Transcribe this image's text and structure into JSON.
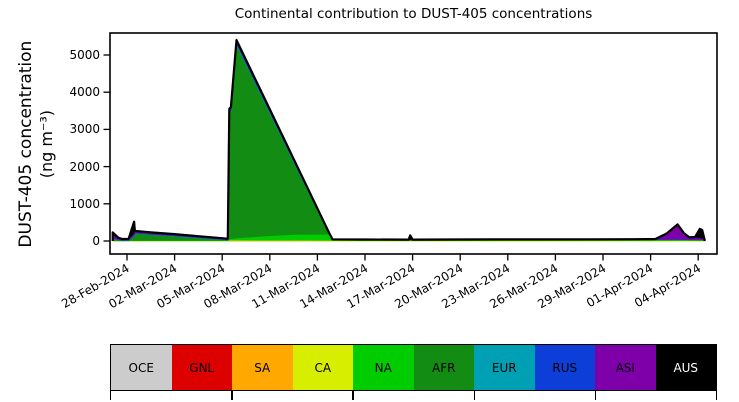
{
  "title": "Continental contribution to DUST-405 concentrations",
  "y_axis": {
    "label_line1": "DUST-405 concentration",
    "label_line2": "(ng m⁻³)",
    "ticks": [
      "0",
      "1000",
      "2000",
      "3000",
      "4000",
      "5000"
    ]
  },
  "x_axis": {
    "ticks": [
      "28-Feb-2024",
      "02-Mar-2024",
      "05-Mar-2024",
      "08-Mar-2024",
      "11-Mar-2024",
      "14-Mar-2024",
      "17-Mar-2024",
      "20-Mar-2024",
      "23-Mar-2024",
      "26-Mar-2024",
      "29-Mar-2024",
      "01-Apr-2024",
      "04-Apr-2024"
    ]
  },
  "legend": {
    "items": [
      {
        "label": "OCE",
        "color": "#cccccc",
        "text_color": "#000000"
      },
      {
        "label": "GNL",
        "color": "#dd0000",
        "text_color": "#000000"
      },
      {
        "label": "SA",
        "color": "#ffa800",
        "text_color": "#000000"
      },
      {
        "label": "CA",
        "color": "#d8ee00",
        "text_color": "#000000"
      },
      {
        "label": "NA",
        "color": "#00cc00",
        "text_color": "#000000"
      },
      {
        "label": "AFR",
        "color": "#128c12",
        "text_color": "#000000"
      },
      {
        "label": "EUR",
        "color": "#00a0b4",
        "text_color": "#000000"
      },
      {
        "label": "RUS",
        "color": "#0d3ed8",
        "text_color": "#000000"
      },
      {
        "label": "ASI",
        "color": "#7d00a8",
        "text_color": "#000000"
      },
      {
        "label": "AUS",
        "color": "#000000",
        "text_color": "#ffffff"
      }
    ]
  },
  "chart_data": {
    "type": "area",
    "stacked": true,
    "title": "Continental contribution to DUST-405 concentrations",
    "ylabel": "DUST-405 concentration (ng m-3)",
    "xlabel": "",
    "x_unit": "days since 28-Feb-2024",
    "xtick_labels": [
      "28-Feb-2024",
      "02-Mar-2024",
      "05-Mar-2024",
      "08-Mar-2024",
      "11-Mar-2024",
      "14-Mar-2024",
      "17-Mar-2024",
      "20-Mar-2024",
      "23-Mar-2024",
      "26-Mar-2024",
      "29-Mar-2024",
      "01-Apr-2024",
      "04-Apr-2024"
    ],
    "xtick_days": [
      0,
      3,
      6,
      9,
      12,
      15,
      18,
      21,
      24,
      27,
      30,
      33,
      36
    ],
    "ylim": [
      -350,
      5600
    ],
    "peak_total": 5400,
    "x": [
      -0.9,
      -0.55,
      -0.3,
      0.1,
      0.45,
      0.5,
      0.62,
      1.5,
      3,
      4.5,
      6.35,
      6.45,
      6.55,
      6.9,
      8.5,
      10.5,
      12.75,
      12.95,
      15,
      17.75,
      17.85,
      18,
      20,
      23,
      26,
      29,
      32,
      33.3,
      34,
      34.7,
      35.1,
      35.45,
      35.8,
      36.1,
      36.25,
      36.4
    ],
    "series": [
      {
        "name": "OCE",
        "color": "#cccccc",
        "values": [
          0,
          0,
          0,
          0,
          0,
          0,
          0,
          0,
          0,
          0,
          0,
          0,
          0,
          0,
          0,
          0,
          0,
          0,
          0,
          0,
          0,
          0,
          0,
          0,
          0,
          0,
          0,
          0,
          0,
          0,
          0,
          0,
          0,
          0,
          0,
          0
        ]
      },
      {
        "name": "GNL",
        "color": "#dd0000",
        "values": [
          0,
          0,
          0,
          0,
          0,
          0,
          0,
          0,
          0,
          0,
          0,
          0,
          0,
          0,
          0,
          0,
          0,
          0,
          0,
          0,
          0,
          0,
          0,
          0,
          0,
          0,
          0,
          0,
          0,
          0,
          0,
          0,
          0,
          0,
          0,
          0
        ]
      },
      {
        "name": "SA",
        "color": "#ffa800",
        "values": [
          0,
          0,
          0,
          0,
          0,
          0,
          0,
          0,
          0,
          0,
          0,
          0,
          0,
          0,
          0,
          0,
          0,
          0,
          0,
          0,
          0,
          0,
          0,
          0,
          0,
          0,
          0,
          0,
          0,
          0,
          0,
          0,
          0,
          0,
          0,
          0
        ]
      },
      {
        "name": "CA",
        "color": "#d8ee00",
        "values": [
          2,
          2,
          2,
          2,
          2,
          2,
          2,
          2,
          2,
          2,
          2,
          12,
          14,
          14,
          12,
          10,
          6,
          4,
          4,
          4,
          4,
          4,
          4,
          4,
          4,
          4,
          4,
          4,
          4,
          4,
          4,
          4,
          4,
          4,
          4,
          3
        ]
      },
      {
        "name": "NA",
        "color": "#00cc00",
        "values": [
          8,
          6,
          6,
          8,
          8,
          9,
          10,
          10,
          10,
          8,
          8,
          30,
          40,
          60,
          110,
          160,
          170,
          22,
          18,
          16,
          16,
          16,
          18,
          18,
          19,
          20,
          20,
          20,
          20,
          20,
          20,
          20,
          20,
          20,
          20,
          12
        ]
      },
      {
        "name": "AFR",
        "color": "#128c12",
        "values": [
          46,
          19,
          5,
          2,
          122,
          191,
          187,
          159,
          118,
          72,
          11,
          3390,
          3431,
          5201,
          3760,
          1952,
          18,
          4,
          3,
          3,
          3,
          3,
          3,
          4,
          5,
          6,
          7,
          8,
          8,
          8,
          7,
          7,
          7,
          5,
          5,
          3
        ]
      },
      {
        "name": "EUR",
        "color": "#00a0b4",
        "values": [
          6,
          5,
          4,
          4,
          5,
          5,
          5,
          5,
          5,
          5,
          5,
          8,
          8,
          10,
          8,
          8,
          3,
          3,
          3,
          3,
          3,
          3,
          3,
          4,
          4,
          4,
          5,
          5,
          5,
          6,
          5,
          4,
          4,
          4,
          4,
          3
        ]
      },
      {
        "name": "RUS",
        "color": "#0d3ed8",
        "values": [
          8,
          6,
          5,
          5,
          8,
          8,
          8,
          8,
          8,
          7,
          6,
          20,
          22,
          30,
          25,
          22,
          2,
          2,
          2,
          2,
          2,
          2,
          2,
          2,
          2,
          2,
          2,
          2,
          3,
          5,
          4,
          3,
          3,
          3,
          3,
          2
        ]
      },
      {
        "name": "ASI",
        "color": "#7d00a8",
        "values": [
          90,
          40,
          25,
          30,
          45,
          40,
          38,
          34,
          30,
          26,
          20,
          50,
          55,
          60,
          45,
          40,
          3,
          2,
          2,
          2,
          2,
          2,
          2,
          2,
          2,
          2,
          2,
          8,
          150,
          390,
          160,
          50,
          60,
          40,
          30,
          5
        ]
      },
      {
        "name": "AUS",
        "color": "#000000",
        "values": [
          70,
          12,
          8,
          8,
          330,
          15,
          15,
          12,
          12,
          10,
          10,
          40,
          30,
          25,
          20,
          18,
          8,
          8,
          8,
          8,
          120,
          8,
          8,
          8,
          8,
          8,
          8,
          8,
          10,
          12,
          10,
          10,
          10,
          250,
          230,
          10
        ]
      }
    ]
  }
}
